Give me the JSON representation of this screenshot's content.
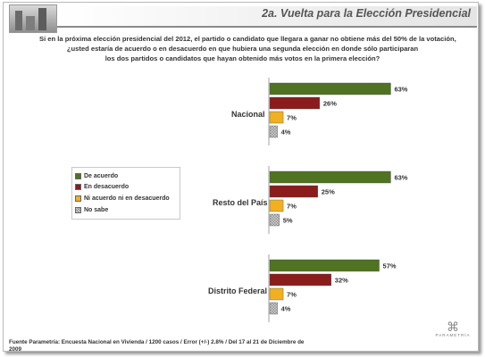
{
  "header": {
    "title": "2a. Vuelta para la Elección Presidencial"
  },
  "question": {
    "line1": "Si en la próxima elección presidencial del 2012, el partido o candidato que llegara a ganar no obtiene más del 50% de la votación,",
    "line2": "¿usted estaría de acuerdo o en desacuerdo en que hubiera una segunda elección en donde sólo participaran",
    "line3": "los dos partidos o candidatos que hayan obtenido más votos en la primera elección?"
  },
  "source": {
    "line1": "Fuente Parametría: Encuesta Nacional en Vivienda / 1200 casos / Error (+/-) 2.8% / Del 17 al 21 de Diciembre de",
    "line2": "2009"
  },
  "footer_logo": {
    "wordmark": "PARAMETRÍA"
  },
  "colors": {
    "de_acuerdo": "#4f7320",
    "en_desacuerdo": "#8b1c1c",
    "ni_acuerdo": "#f0b020",
    "no_sabe": "#b8b8b8"
  },
  "chart_data": {
    "type": "bar",
    "orientation": "horizontal",
    "categories": [
      "Nacional",
      "Resto del País",
      "Distrito Federal"
    ],
    "series": [
      {
        "name": "De acuerdo",
        "values": [
          63,
          63,
          57
        ]
      },
      {
        "name": "En desacuerdo",
        "values": [
          26,
          25,
          32
        ]
      },
      {
        "name": "Ni acuerdo ni en desacuerdo",
        "values": [
          7,
          7,
          7
        ]
      },
      {
        "name": "No sabe",
        "values": [
          4,
          5,
          4
        ]
      }
    ],
    "value_suffix": "%",
    "legend_position": "left",
    "grid": false,
    "xlim": [
      0,
      100
    ]
  }
}
